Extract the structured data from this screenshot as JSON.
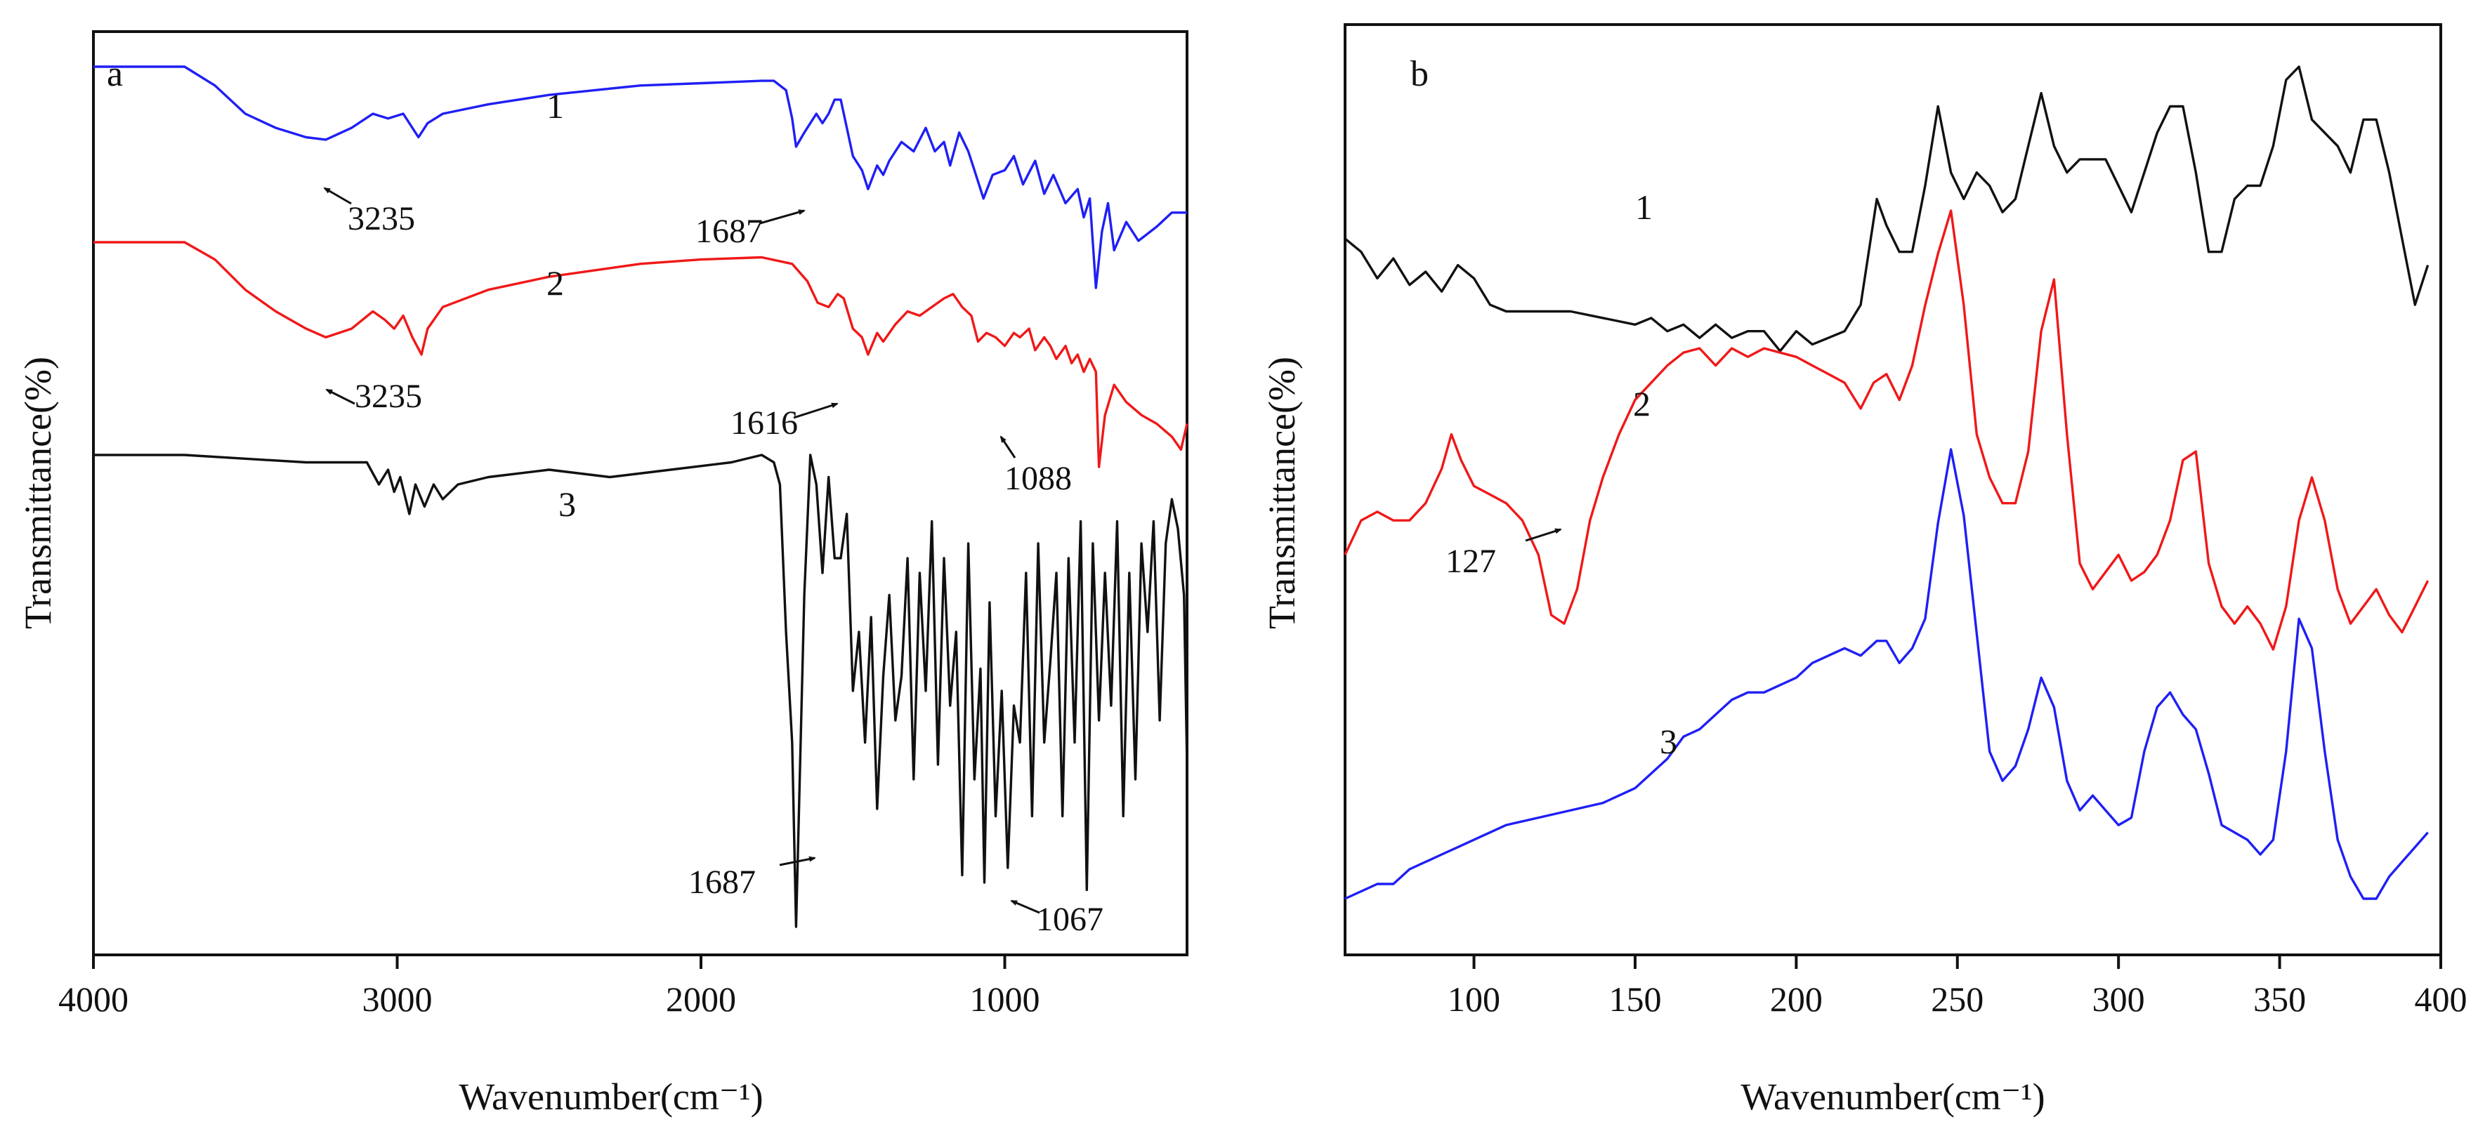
{
  "chart_data": [
    {
      "panel": "a",
      "type": "line",
      "title": "",
      "xlabel": "Wavenumber(cm⁻¹)",
      "ylabel": "Transmittance(%)",
      "xlim": [
        4000,
        400
      ],
      "xticks": [
        4000,
        3000,
        2000,
        1000
      ],
      "grid": false,
      "series": [
        {
          "name": "1",
          "color": "#1f1ff5",
          "x": [
            4000,
            3700,
            3600,
            3500,
            3400,
            3300,
            3235,
            3150,
            3080,
            3030,
            2980,
            2960,
            2930,
            2900,
            2850,
            2700,
            2500,
            2200,
            2000,
            1800,
            1760,
            1720,
            1700,
            1687,
            1660,
            1620,
            1600,
            1580,
            1560,
            1540,
            1500,
            1470,
            1450,
            1420,
            1400,
            1380,
            1340,
            1300,
            1260,
            1230,
            1200,
            1180,
            1150,
            1120,
            1100,
            1070,
            1040,
            1000,
            970,
            940,
            900,
            870,
            840,
            800,
            760,
            740,
            720,
            700,
            680,
            660,
            640,
            600,
            560,
            520,
            500,
            450,
            400
          ],
          "y": [
            99,
            99,
            95,
            89,
            86,
            84,
            83.5,
            86,
            89,
            88,
            89,
            87,
            84,
            87,
            89,
            91,
            93,
            95,
            95.5,
            96,
            96,
            94,
            88,
            82,
            85,
            89,
            87,
            89,
            92,
            92,
            80,
            77,
            73,
            78,
            76,
            79,
            83,
            81,
            86,
            81,
            83,
            78,
            85,
            81,
            77,
            71,
            76,
            77,
            80,
            74,
            79,
            72,
            76,
            70,
            73,
            67,
            71,
            52,
            64,
            70,
            60,
            66,
            62,
            64,
            65,
            68,
            68
          ]
        },
        {
          "name": "2",
          "color": "#f01818",
          "x": [
            4000,
            3700,
            3600,
            3500,
            3400,
            3300,
            3235,
            3150,
            3080,
            3040,
            3010,
            2980,
            2950,
            2920,
            2900,
            2850,
            2700,
            2500,
            2200,
            2000,
            1800,
            1700,
            1650,
            1616,
            1580,
            1550,
            1530,
            1500,
            1470,
            1450,
            1420,
            1400,
            1360,
            1320,
            1280,
            1240,
            1200,
            1170,
            1140,
            1110,
            1088,
            1060,
            1030,
            1000,
            970,
            950,
            920,
            900,
            870,
            850,
            830,
            800,
            780,
            760,
            740,
            720,
            700,
            690,
            670,
            640,
            600,
            550,
            500,
            450,
            420,
            400
          ],
          "y": [
            100,
            100,
            96,
            89,
            84,
            80,
            78,
            80,
            84,
            82,
            80,
            83,
            78,
            74,
            80,
            85,
            89,
            92,
            95,
            96,
            96.5,
            95,
            91,
            86,
            85,
            88,
            87,
            80,
            78,
            74,
            79,
            77,
            81,
            84,
            83,
            85,
            87,
            88,
            85,
            83,
            77,
            79,
            78,
            76,
            79,
            78,
            80,
            75,
            78,
            76,
            73,
            76,
            72,
            74,
            70,
            73,
            70,
            48,
            60,
            67,
            63,
            60,
            58,
            55,
            52,
            58
          ]
        },
        {
          "name": "3",
          "color": "#111111",
          "x": [
            4000,
            3700,
            3500,
            3300,
            3100,
            3060,
            3030,
            3010,
            2990,
            2960,
            2940,
            2910,
            2880,
            2850,
            2800,
            2700,
            2500,
            2300,
            2100,
            1900,
            1800,
            1760,
            1740,
            1720,
            1700,
            1687,
            1660,
            1640,
            1620,
            1600,
            1580,
            1560,
            1540,
            1520,
            1500,
            1480,
            1460,
            1440,
            1420,
            1400,
            1380,
            1360,
            1340,
            1320,
            1300,
            1280,
            1260,
            1240,
            1220,
            1200,
            1180,
            1160,
            1140,
            1120,
            1100,
            1080,
            1067,
            1050,
            1030,
            1010,
            990,
            970,
            950,
            930,
            910,
            890,
            870,
            850,
            830,
            810,
            790,
            770,
            750,
            730,
            710,
            690,
            670,
            650,
            630,
            610,
            590,
            570,
            550,
            530,
            510,
            490,
            470,
            450,
            430,
            410,
            400
          ],
          "y": [
            94,
            94,
            93.5,
            93,
            93,
            90,
            92,
            89,
            91,
            86,
            90,
            87,
            90,
            88,
            90,
            91,
            92,
            91,
            92,
            93,
            94,
            93,
            90,
            70,
            55,
            30,
            75,
            94,
            90,
            78,
            91,
            80,
            80,
            86,
            62,
            70,
            55,
            72,
            46,
            64,
            75,
            58,
            64,
            80,
            50,
            78,
            62,
            85,
            52,
            80,
            60,
            70,
            37,
            82,
            50,
            65,
            36,
            74,
            45,
            62,
            38,
            60,
            55,
            78,
            45,
            82,
            55,
            66,
            78,
            45,
            80,
            55,
            85,
            35,
            82,
            58,
            78,
            60,
            85,
            45,
            78,
            50,
            82,
            70,
            85,
            58,
            82,
            88,
            84,
            75,
            52
          ]
        }
      ],
      "curve_labels": [
        "1",
        "2",
        "3"
      ],
      "annotations": [
        {
          "text": "3235",
          "series": "1"
        },
        {
          "text": "1687",
          "series": "1"
        },
        {
          "text": "3235",
          "series": "2"
        },
        {
          "text": "1616",
          "series": "2"
        },
        {
          "text": "1088",
          "series": "2"
        },
        {
          "text": "1687",
          "series": "3"
        },
        {
          "text": "1067",
          "series": "3"
        }
      ]
    },
    {
      "panel": "b",
      "type": "line",
      "title": "",
      "xlabel": "Wavenumber(cm⁻¹)",
      "ylabel": "Transmittance(%)",
      "xlim": [
        60,
        400
      ],
      "xticks": [
        100,
        150,
        200,
        250,
        300,
        350,
        400
      ],
      "grid": false,
      "series": [
        {
          "name": "1",
          "color": "#111111",
          "x": [
            60,
            65,
            70,
            75,
            80,
            85,
            90,
            95,
            100,
            105,
            110,
            120,
            130,
            140,
            150,
            155,
            160,
            165,
            170,
            175,
            180,
            185,
            190,
            195,
            200,
            205,
            210,
            215,
            220,
            225,
            228,
            232,
            236,
            240,
            244,
            248,
            252,
            256,
            260,
            264,
            268,
            272,
            276,
            280,
            284,
            288,
            292,
            296,
            300,
            304,
            308,
            312,
            316,
            320,
            324,
            328,
            332,
            336,
            340,
            344,
            348,
            352,
            356,
            360,
            364,
            368,
            372,
            376,
            380,
            384,
            388,
            392,
            396
          ],
          "y": [
            73,
            72,
            70,
            71.5,
            69.5,
            70.5,
            69,
            71,
            70,
            68,
            67.5,
            67.5,
            67.5,
            67,
            66.5,
            67,
            66,
            66.5,
            65.5,
            66.5,
            65.5,
            66,
            66,
            64.5,
            66,
            65,
            65.5,
            66,
            68,
            76,
            74,
            72,
            72,
            77,
            83,
            78,
            76,
            78,
            77,
            75,
            76,
            80,
            84,
            80,
            78,
            79,
            79,
            79,
            77,
            75,
            78,
            81,
            83,
            83,
            78,
            72,
            72,
            76,
            77,
            77,
            80,
            85,
            86,
            82,
            81,
            80,
            78,
            82,
            82,
            78,
            73,
            68,
            71
          ]
        },
        {
          "name": "2",
          "color": "#f01818",
          "x": [
            60,
            65,
            70,
            75,
            80,
            85,
            90,
            93,
            96,
            100,
            105,
            110,
            115,
            120,
            124,
            128,
            132,
            136,
            140,
            145,
            150,
            155,
            160,
            165,
            170,
            175,
            180,
            185,
            190,
            195,
            200,
            205,
            210,
            215,
            220,
            224,
            228,
            232,
            236,
            240,
            244,
            248,
            252,
            256,
            260,
            264,
            268,
            272,
            276,
            280,
            284,
            288,
            292,
            296,
            300,
            304,
            308,
            312,
            316,
            320,
            324,
            328,
            332,
            336,
            340,
            344,
            348,
            352,
            356,
            360,
            364,
            368,
            372,
            376,
            380,
            384,
            388,
            392,
            396
          ],
          "y": [
            46,
            50,
            51,
            50,
            50,
            52,
            56,
            60,
            57,
            54,
            53,
            52,
            50,
            46,
            39,
            38,
            42,
            50,
            55,
            60,
            64,
            66,
            68,
            69.5,
            70,
            68,
            70,
            69,
            70,
            69.5,
            69,
            68,
            67,
            66,
            63,
            66,
            67,
            64,
            68,
            75,
            81,
            86,
            75,
            60,
            55,
            52,
            52,
            58,
            72,
            78,
            60,
            45,
            42,
            44,
            46,
            43,
            44,
            46,
            50,
            57,
            58,
            45,
            40,
            38,
            40,
            38,
            35,
            40,
            50,
            55,
            50,
            42,
            38,
            40,
            42,
            39,
            37,
            40,
            43
          ]
        },
        {
          "name": "3",
          "color": "#1f1ff5",
          "x": [
            60,
            65,
            70,
            75,
            80,
            85,
            90,
            95,
            100,
            105,
            110,
            120,
            130,
            140,
            145,
            150,
            155,
            160,
            165,
            170,
            175,
            180,
            185,
            190,
            195,
            200,
            205,
            210,
            215,
            220,
            225,
            228,
            232,
            236,
            240,
            244,
            248,
            252,
            256,
            260,
            264,
            268,
            272,
            276,
            280,
            284,
            288,
            292,
            296,
            300,
            304,
            308,
            312,
            316,
            320,
            324,
            328,
            332,
            336,
            340,
            344,
            348,
            352,
            356,
            360,
            364,
            368,
            372,
            376,
            380,
            384,
            388,
            392,
            396
          ],
          "y": [
            2,
            3,
            4,
            4,
            6,
            7,
            8,
            9,
            10,
            11,
            12,
            13,
            14,
            15,
            16,
            17,
            19,
            21,
            24,
            25,
            27,
            29,
            30,
            30,
            31,
            32,
            34,
            35,
            36,
            35,
            37,
            37,
            34,
            36,
            40,
            53,
            63,
            54,
            38,
            22,
            18,
            20,
            25,
            32,
            28,
            18,
            14,
            16,
            14,
            12,
            13,
            22,
            28,
            30,
            27,
            25,
            19,
            12,
            11,
            10,
            8,
            10,
            22,
            40,
            36,
            22,
            10,
            5,
            2,
            2,
            5,
            7,
            9,
            11
          ]
        }
      ],
      "curve_labels": [
        "1",
        "2",
        "3"
      ],
      "annotations": [
        {
          "text": "127",
          "series": "2"
        }
      ]
    }
  ]
}
